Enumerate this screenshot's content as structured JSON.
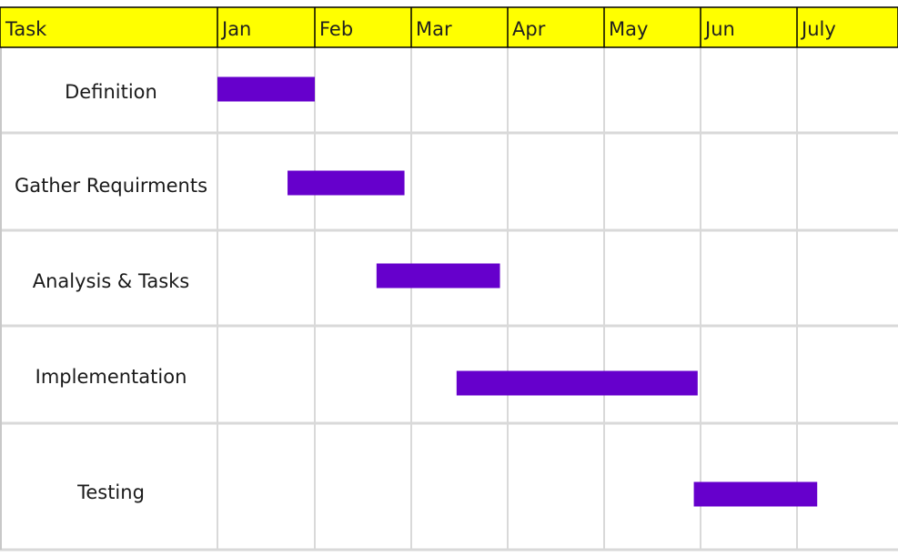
{
  "chart_data": {
    "type": "gantt",
    "header_label": "Task",
    "months": [
      "Jan",
      "Feb",
      "Mar",
      "Apr",
      "May",
      "Jun",
      "July"
    ],
    "tasks": [
      {
        "name": "Definition",
        "start": 0.0,
        "end": 1.0
      },
      {
        "name": "Gather Requirments",
        "start": 0.72,
        "end": 1.93
      },
      {
        "name": "Analysis & Tasks",
        "start": 1.64,
        "end": 2.92
      },
      {
        "name": "Implementation",
        "start": 2.47,
        "end": 4.97
      },
      {
        "name": "Testing",
        "start": 4.93,
        "end": 6.2
      }
    ],
    "x_unit": "months from start of Jan",
    "colors": {
      "header": "#ffff00",
      "bar": "#6600cc",
      "grid": "#d9d9d9",
      "header_border": "#000000"
    },
    "grid": true
  }
}
